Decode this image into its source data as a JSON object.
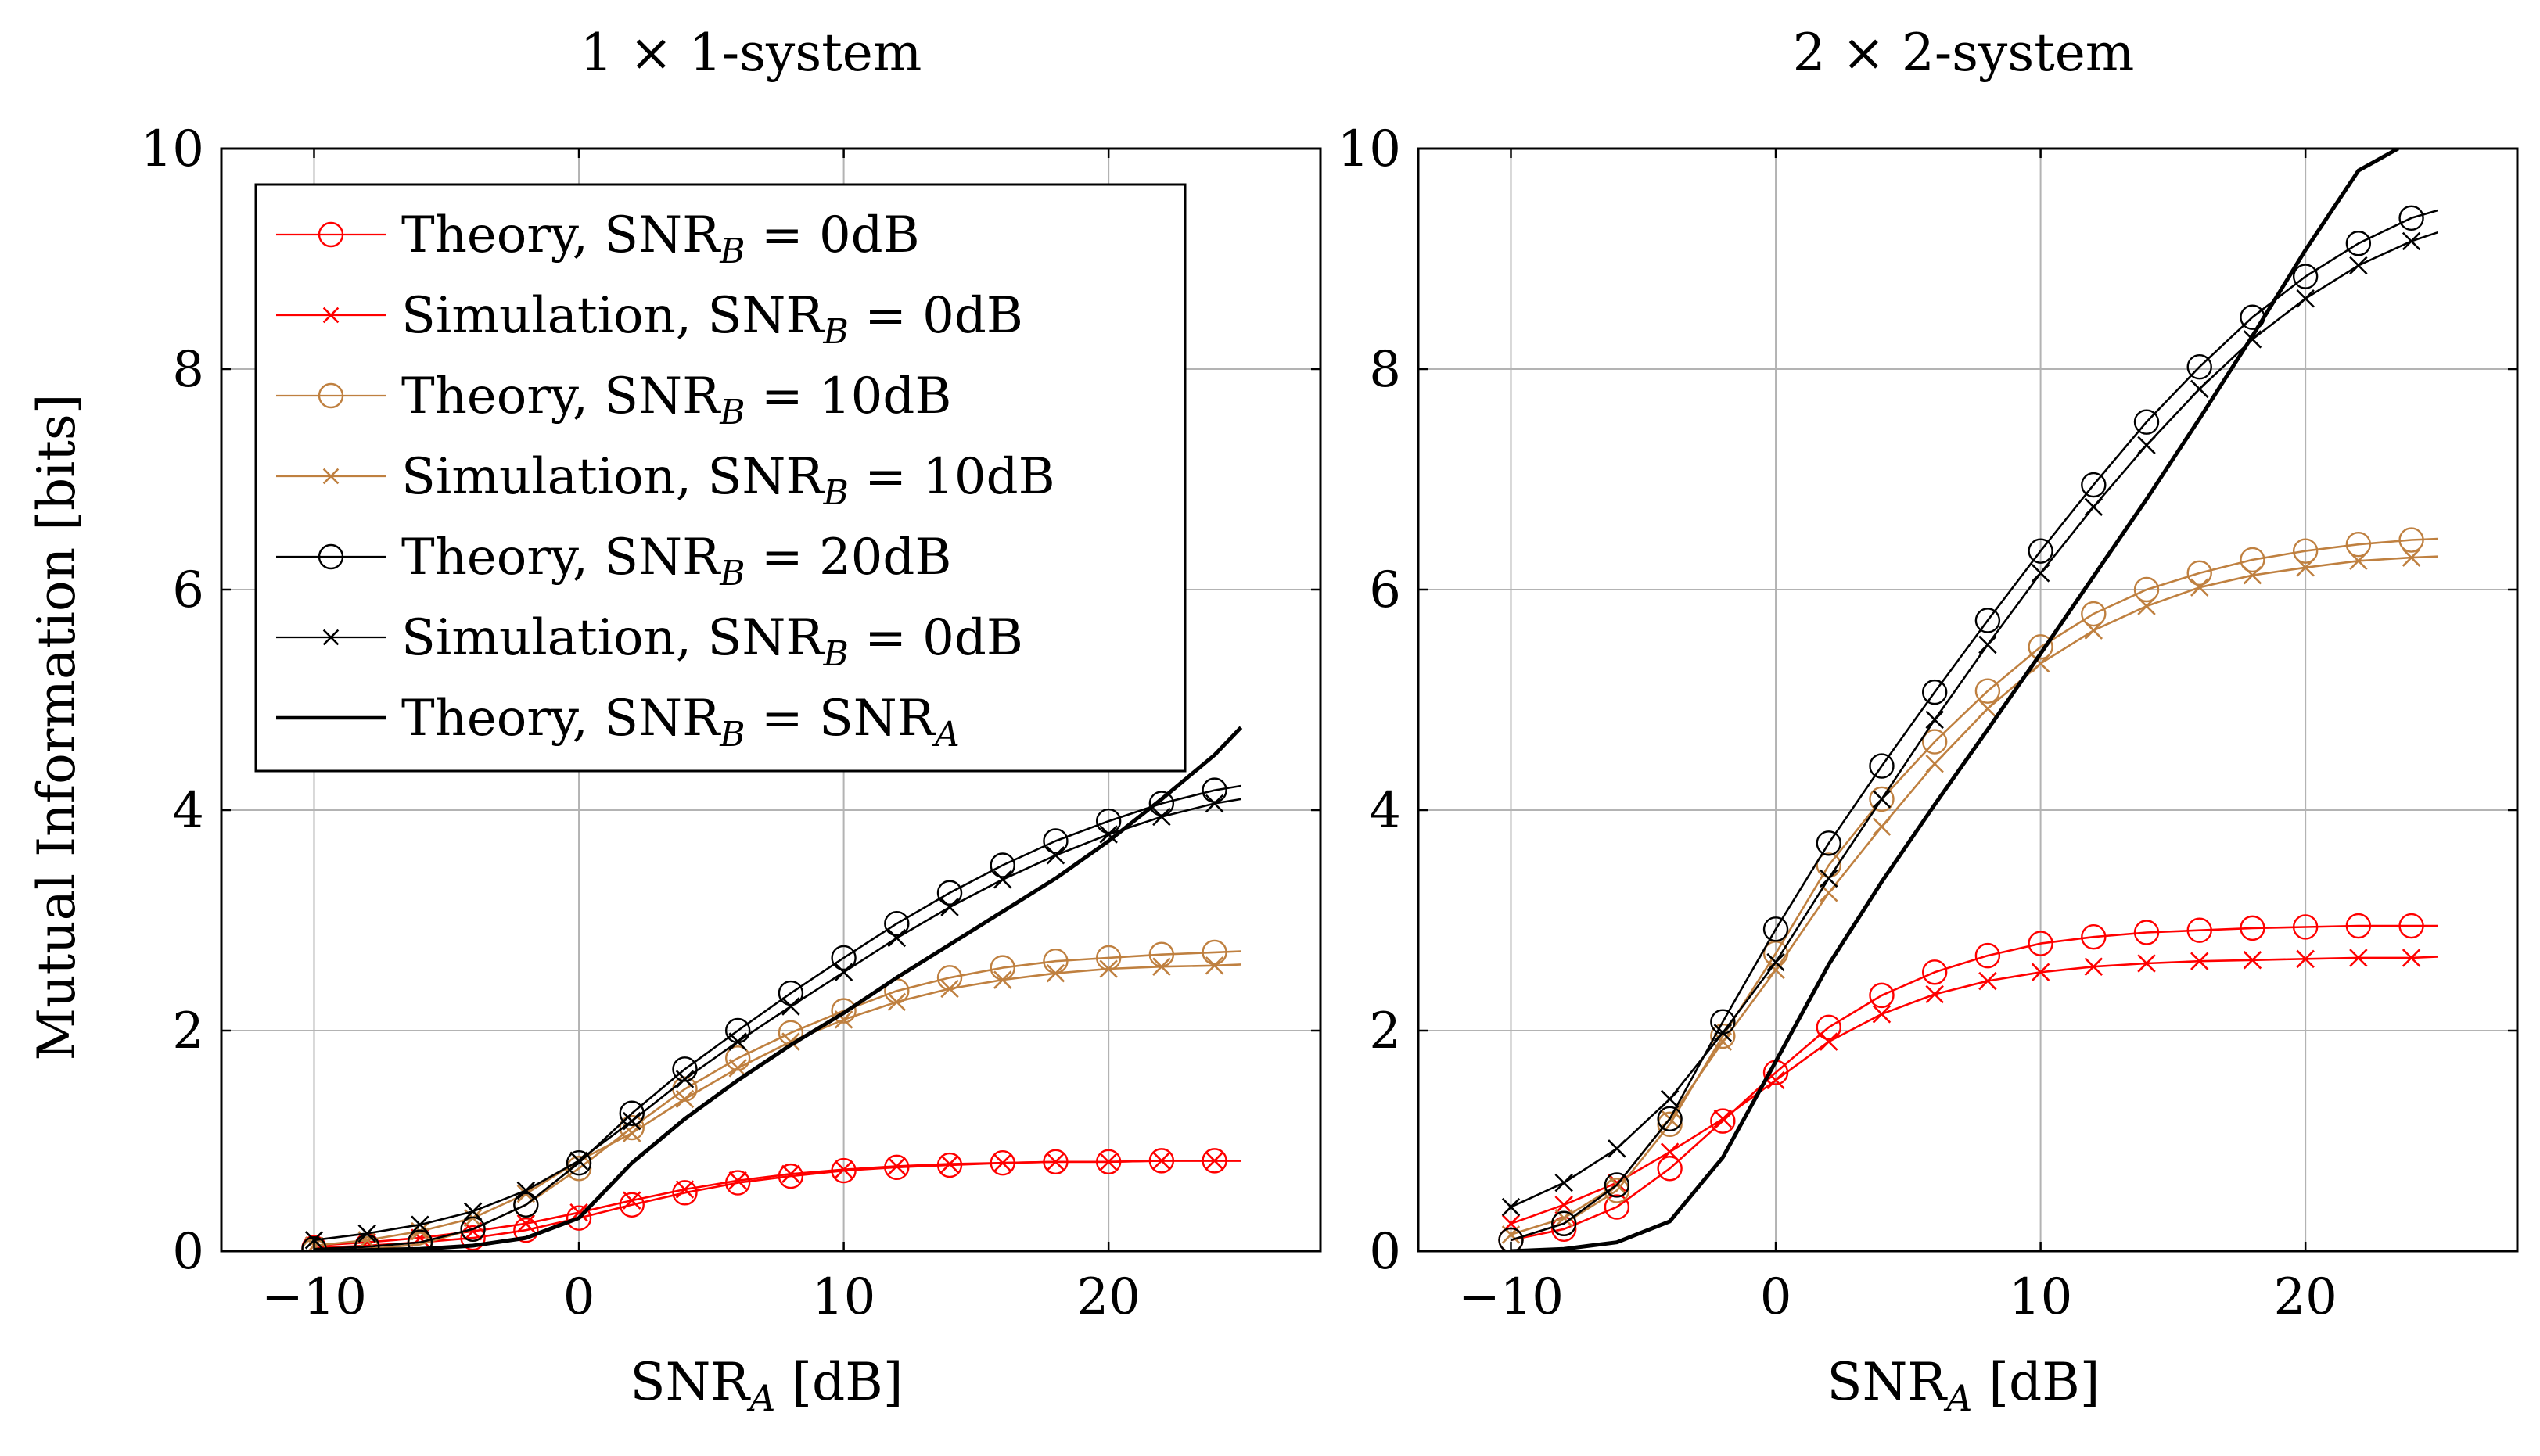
{
  "colors": {
    "red": "#ff0000",
    "brown": "#bf8040",
    "black": "#000000",
    "grid": "#b3b3b3"
  },
  "legend": {
    "entries": [
      {
        "label": "Theory, SNR",
        "sub": "B",
        "rest": " = 0dB",
        "color": "#ff0000",
        "marker": "circle",
        "width": 2.2
      },
      {
        "label": "Simulation, SNR",
        "sub": "B",
        "rest": " = 0dB",
        "color": "#ff0000",
        "marker": "cross",
        "width": 2.2
      },
      {
        "label": "Theory, SNR",
        "sub": "B",
        "rest": " = 10dB",
        "color": "#bf8040",
        "marker": "circle",
        "width": 2.2
      },
      {
        "label": "Simulation, SNR",
        "sub": "B",
        "rest": " = 10dB",
        "color": "#bf8040",
        "marker": "cross",
        "width": 2.2
      },
      {
        "label": "Theory, SNR",
        "sub": "B",
        "rest": " = 20dB",
        "color": "#000000",
        "marker": "circle",
        "width": 2.2
      },
      {
        "label": "Simulation, SNR",
        "sub": "B",
        "rest": " = 0dB",
        "color": "#000000",
        "marker": "cross",
        "width": 2.2
      },
      {
        "label": "Theory, SNR",
        "sub": "B",
        "rest": " = SNR",
        "sub2": "A",
        "color": "#000000",
        "marker": "none",
        "width": 4.5
      }
    ]
  },
  "chart_data": [
    {
      "type": "line",
      "title": "1 × 1-system",
      "xlabel": "SNR",
      "xlabel_sub": "A",
      "xlabel_unit": " [dB]",
      "ylabel": "Mutual Information [bits]",
      "xlim": [
        -13.5,
        28
      ],
      "ylim": [
        0,
        10
      ],
      "xticks": [
        -10,
        0,
        10,
        20
      ],
      "xtick_labels": [
        "−10",
        "0",
        "10",
        "20"
      ],
      "yticks": [
        0,
        2,
        4,
        6,
        8,
        10
      ],
      "ytick_labels": [
        "0",
        "2",
        "4",
        "6",
        "8",
        "10"
      ],
      "grid": true,
      "series": [
        {
          "name": "Theory, SNR_B = 0dB",
          "color": "#ff0000",
          "marker": "circle",
          "x": [
            -10,
            -8,
            -6,
            -4,
            -2,
            0,
            2,
            4,
            6,
            8,
            10,
            12,
            14,
            16,
            18,
            20,
            22,
            24,
            25
          ],
          "y": [
            0.03,
            0.05,
            0.08,
            0.12,
            0.19,
            0.3,
            0.42,
            0.53,
            0.62,
            0.68,
            0.73,
            0.76,
            0.78,
            0.8,
            0.81,
            0.81,
            0.82,
            0.82,
            0.82
          ]
        },
        {
          "name": "Simulation, SNR_B = 0dB",
          "color": "#ff0000",
          "marker": "cross",
          "x": [
            -10,
            -8,
            -6,
            -4,
            -2,
            0,
            2,
            4,
            6,
            8,
            10,
            12,
            14,
            16,
            18,
            20,
            22,
            24,
            25
          ],
          "y": [
            0.05,
            0.08,
            0.12,
            0.18,
            0.25,
            0.35,
            0.46,
            0.56,
            0.64,
            0.7,
            0.74,
            0.77,
            0.79,
            0.8,
            0.81,
            0.81,
            0.82,
            0.82,
            0.82
          ]
        },
        {
          "name": "Theory, SNR_B = 10dB",
          "color": "#bf8040",
          "marker": "circle",
          "x": [
            -10,
            -8,
            -6,
            -4,
            -2,
            0,
            2,
            4,
            6,
            8,
            10,
            12,
            14,
            16,
            18,
            20,
            22,
            24,
            25
          ],
          "y": [
            0.0,
            0.02,
            0.06,
            0.2,
            0.42,
            0.75,
            1.12,
            1.47,
            1.75,
            1.98,
            2.18,
            2.36,
            2.48,
            2.57,
            2.63,
            2.66,
            2.69,
            2.71,
            2.72
          ]
        },
        {
          "name": "Simulation, SNR_B = 10dB",
          "color": "#bf8040",
          "marker": "cross",
          "x": [
            -10,
            -8,
            -6,
            -4,
            -2,
            0,
            2,
            4,
            6,
            8,
            10,
            12,
            14,
            16,
            18,
            20,
            22,
            24,
            25
          ],
          "y": [
            0.05,
            0.1,
            0.18,
            0.3,
            0.52,
            0.82,
            1.07,
            1.38,
            1.66,
            1.9,
            2.1,
            2.26,
            2.38,
            2.46,
            2.52,
            2.56,
            2.58,
            2.59,
            2.6
          ]
        },
        {
          "name": "Theory, SNR_B = 20dB",
          "color": "#000000",
          "marker": "circle",
          "x": [
            -10,
            -8,
            -6,
            -4,
            -2,
            0,
            2,
            4,
            6,
            8,
            10,
            12,
            14,
            16,
            18,
            20,
            22,
            24,
            25
          ],
          "y": [
            0.02,
            0.04,
            0.08,
            0.2,
            0.42,
            0.8,
            1.25,
            1.65,
            2.0,
            2.34,
            2.66,
            2.97,
            3.25,
            3.5,
            3.72,
            3.9,
            4.06,
            4.18,
            4.22
          ]
        },
        {
          "name": "Simulation, SNR_B = 0dB (black)",
          "color": "#000000",
          "marker": "cross",
          "x": [
            -10,
            -8,
            -6,
            -4,
            -2,
            0,
            2,
            4,
            6,
            8,
            10,
            12,
            14,
            16,
            18,
            20,
            22,
            24,
            25
          ],
          "y": [
            0.1,
            0.16,
            0.24,
            0.36,
            0.55,
            0.82,
            1.18,
            1.56,
            1.9,
            2.22,
            2.53,
            2.84,
            3.12,
            3.37,
            3.59,
            3.78,
            3.94,
            4.06,
            4.1
          ]
        },
        {
          "name": "Theory, SNR_B = SNR_A",
          "color": "#000000",
          "marker": "none",
          "thick": true,
          "x": [
            -10,
            -8,
            -6,
            -4,
            -2,
            0,
            2,
            4,
            6,
            8,
            10,
            12,
            14,
            16,
            18,
            20,
            22,
            24,
            25
          ],
          "y": [
            0.0,
            0.01,
            0.02,
            0.05,
            0.12,
            0.3,
            0.8,
            1.2,
            1.55,
            1.87,
            2.16,
            2.48,
            2.78,
            3.08,
            3.38,
            3.72,
            4.1,
            4.5,
            4.75
          ]
        }
      ]
    },
    {
      "type": "line",
      "title": "2 × 2-system",
      "xlabel": "SNR",
      "xlabel_sub": "A",
      "xlabel_unit": " [dB]",
      "ylabel": "",
      "xlim": [
        -13.5,
        28
      ],
      "ylim": [
        0,
        10
      ],
      "xticks": [
        -10,
        0,
        10,
        20
      ],
      "xtick_labels": [
        "−10",
        "0",
        "10",
        "20"
      ],
      "yticks": [
        0,
        2,
        4,
        6,
        8,
        10
      ],
      "ytick_labels": [
        "0",
        "2",
        "4",
        "6",
        "8",
        "10"
      ],
      "grid": true,
      "series": [
        {
          "name": "Theory, SNR_B = 0dB",
          "color": "#ff0000",
          "marker": "circle",
          "x": [
            -10,
            -8,
            -6,
            -4,
            -2,
            0,
            2,
            4,
            6,
            8,
            10,
            12,
            14,
            16,
            18,
            20,
            22,
            24,
            25
          ],
          "y": [
            0.1,
            0.2,
            0.4,
            0.75,
            1.18,
            1.62,
            2.03,
            2.32,
            2.53,
            2.68,
            2.79,
            2.85,
            2.89,
            2.91,
            2.93,
            2.94,
            2.95,
            2.95,
            2.95
          ]
        },
        {
          "name": "Simulation, SNR_B = 0dB",
          "color": "#ff0000",
          "marker": "cross",
          "x": [
            -10,
            -8,
            -6,
            -4,
            -2,
            0,
            2,
            4,
            6,
            8,
            10,
            12,
            14,
            16,
            18,
            20,
            22,
            24,
            25
          ],
          "y": [
            0.25,
            0.42,
            0.62,
            0.9,
            1.2,
            1.55,
            1.9,
            2.15,
            2.33,
            2.45,
            2.53,
            2.58,
            2.61,
            2.63,
            2.64,
            2.65,
            2.66,
            2.66,
            2.67
          ]
        },
        {
          "name": "Theory, SNR_B = 10dB",
          "color": "#bf8040",
          "marker": "circle",
          "x": [
            -10,
            -8,
            -6,
            -4,
            -2,
            0,
            2,
            4,
            6,
            8,
            10,
            12,
            14,
            16,
            18,
            20,
            22,
            24,
            25
          ],
          "y": [
            0.1,
            0.25,
            0.55,
            1.15,
            1.95,
            2.7,
            3.5,
            4.1,
            4.62,
            5.08,
            5.48,
            5.78,
            6.0,
            6.15,
            6.27,
            6.35,
            6.41,
            6.45,
            6.46
          ]
        },
        {
          "name": "Simulation, SNR_B = 10dB",
          "color": "#bf8040",
          "marker": "cross",
          "x": [
            -10,
            -8,
            -6,
            -4,
            -2,
            0,
            2,
            4,
            6,
            8,
            10,
            12,
            14,
            16,
            18,
            20,
            22,
            24,
            25
          ],
          "y": [
            0.15,
            0.3,
            0.6,
            1.2,
            1.9,
            2.55,
            3.25,
            3.85,
            4.42,
            4.92,
            5.33,
            5.63,
            5.85,
            6.02,
            6.13,
            6.2,
            6.26,
            6.29,
            6.3
          ]
        },
        {
          "name": "Theory, SNR_B = 20dB",
          "color": "#000000",
          "marker": "circle",
          "x": [
            -10,
            -8,
            -6,
            -4,
            -2,
            0,
            2,
            4,
            6,
            8,
            10,
            12,
            14,
            16,
            18,
            20,
            22,
            24,
            25
          ],
          "y": [
            0.1,
            0.25,
            0.6,
            1.2,
            2.08,
            2.92,
            3.7,
            4.4,
            5.07,
            5.72,
            6.35,
            6.95,
            7.52,
            8.02,
            8.47,
            8.84,
            9.14,
            9.37,
            9.44
          ]
        },
        {
          "name": "Simulation, SNR_B = 0dB (black)",
          "color": "#000000",
          "marker": "cross",
          "x": [
            -10,
            -8,
            -6,
            -4,
            -2,
            0,
            2,
            4,
            6,
            8,
            10,
            12,
            14,
            16,
            18,
            20,
            22,
            24,
            25
          ],
          "y": [
            0.4,
            0.62,
            0.93,
            1.38,
            1.98,
            2.62,
            3.38,
            4.1,
            4.82,
            5.5,
            6.15,
            6.75,
            7.31,
            7.82,
            8.27,
            8.64,
            8.94,
            9.16,
            9.24
          ]
        },
        {
          "name": "Theory, SNR_B = SNR_A",
          "color": "#000000",
          "marker": "none",
          "thick": true,
          "x": [
            -10,
            -8,
            -6,
            -4,
            -2,
            0,
            2,
            4,
            6,
            8,
            10,
            12,
            14,
            16,
            18,
            20,
            22,
            23.5
          ],
          "y": [
            0.0,
            0.02,
            0.08,
            0.27,
            0.85,
            1.72,
            2.6,
            3.35,
            4.05,
            4.73,
            5.42,
            6.12,
            6.82,
            7.55,
            8.3,
            9.08,
            9.8,
            10.0
          ]
        }
      ]
    }
  ]
}
